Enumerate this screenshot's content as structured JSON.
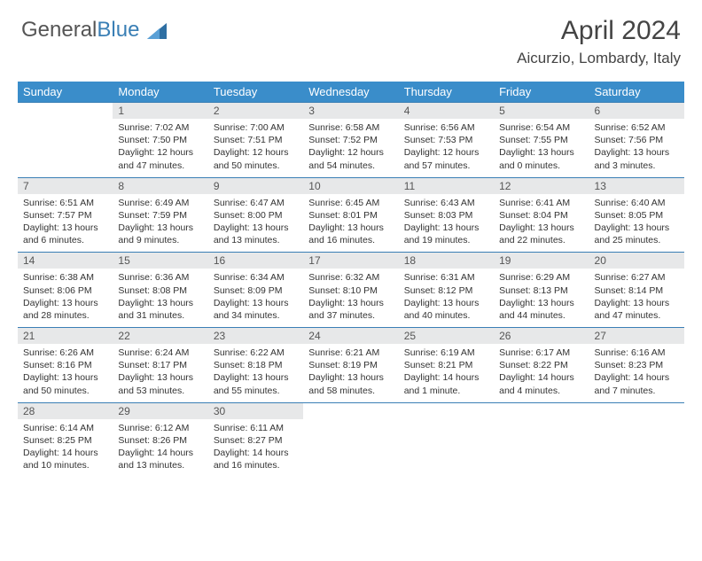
{
  "brand": {
    "part1": "General",
    "part2": "Blue"
  },
  "header": {
    "title": "April 2024",
    "location": "Aicurzio, Lombardy, Italy"
  },
  "theme": {
    "header_bg": "#3a8dca",
    "header_text": "#ffffff",
    "daynum_bg": "#e7e8e9",
    "rule_color": "#3a7fb5",
    "body_text": "#333333"
  },
  "weekdays": [
    "Sunday",
    "Monday",
    "Tuesday",
    "Wednesday",
    "Thursday",
    "Friday",
    "Saturday"
  ],
  "weeks": [
    {
      "nums": [
        "",
        "1",
        "2",
        "3",
        "4",
        "5",
        "6"
      ],
      "cells": [
        {
          "sunrise": "",
          "sunset": "",
          "daylight": ""
        },
        {
          "sunrise": "Sunrise: 7:02 AM",
          "sunset": "Sunset: 7:50 PM",
          "daylight": "Daylight: 12 hours and 47 minutes."
        },
        {
          "sunrise": "Sunrise: 7:00 AM",
          "sunset": "Sunset: 7:51 PM",
          "daylight": "Daylight: 12 hours and 50 minutes."
        },
        {
          "sunrise": "Sunrise: 6:58 AM",
          "sunset": "Sunset: 7:52 PM",
          "daylight": "Daylight: 12 hours and 54 minutes."
        },
        {
          "sunrise": "Sunrise: 6:56 AM",
          "sunset": "Sunset: 7:53 PM",
          "daylight": "Daylight: 12 hours and 57 minutes."
        },
        {
          "sunrise": "Sunrise: 6:54 AM",
          "sunset": "Sunset: 7:55 PM",
          "daylight": "Daylight: 13 hours and 0 minutes."
        },
        {
          "sunrise": "Sunrise: 6:52 AM",
          "sunset": "Sunset: 7:56 PM",
          "daylight": "Daylight: 13 hours and 3 minutes."
        }
      ]
    },
    {
      "nums": [
        "7",
        "8",
        "9",
        "10",
        "11",
        "12",
        "13"
      ],
      "cells": [
        {
          "sunrise": "Sunrise: 6:51 AM",
          "sunset": "Sunset: 7:57 PM",
          "daylight": "Daylight: 13 hours and 6 minutes."
        },
        {
          "sunrise": "Sunrise: 6:49 AM",
          "sunset": "Sunset: 7:59 PM",
          "daylight": "Daylight: 13 hours and 9 minutes."
        },
        {
          "sunrise": "Sunrise: 6:47 AM",
          "sunset": "Sunset: 8:00 PM",
          "daylight": "Daylight: 13 hours and 13 minutes."
        },
        {
          "sunrise": "Sunrise: 6:45 AM",
          "sunset": "Sunset: 8:01 PM",
          "daylight": "Daylight: 13 hours and 16 minutes."
        },
        {
          "sunrise": "Sunrise: 6:43 AM",
          "sunset": "Sunset: 8:03 PM",
          "daylight": "Daylight: 13 hours and 19 minutes."
        },
        {
          "sunrise": "Sunrise: 6:41 AM",
          "sunset": "Sunset: 8:04 PM",
          "daylight": "Daylight: 13 hours and 22 minutes."
        },
        {
          "sunrise": "Sunrise: 6:40 AM",
          "sunset": "Sunset: 8:05 PM",
          "daylight": "Daylight: 13 hours and 25 minutes."
        }
      ]
    },
    {
      "nums": [
        "14",
        "15",
        "16",
        "17",
        "18",
        "19",
        "20"
      ],
      "cells": [
        {
          "sunrise": "Sunrise: 6:38 AM",
          "sunset": "Sunset: 8:06 PM",
          "daylight": "Daylight: 13 hours and 28 minutes."
        },
        {
          "sunrise": "Sunrise: 6:36 AM",
          "sunset": "Sunset: 8:08 PM",
          "daylight": "Daylight: 13 hours and 31 minutes."
        },
        {
          "sunrise": "Sunrise: 6:34 AM",
          "sunset": "Sunset: 8:09 PM",
          "daylight": "Daylight: 13 hours and 34 minutes."
        },
        {
          "sunrise": "Sunrise: 6:32 AM",
          "sunset": "Sunset: 8:10 PM",
          "daylight": "Daylight: 13 hours and 37 minutes."
        },
        {
          "sunrise": "Sunrise: 6:31 AM",
          "sunset": "Sunset: 8:12 PM",
          "daylight": "Daylight: 13 hours and 40 minutes."
        },
        {
          "sunrise": "Sunrise: 6:29 AM",
          "sunset": "Sunset: 8:13 PM",
          "daylight": "Daylight: 13 hours and 44 minutes."
        },
        {
          "sunrise": "Sunrise: 6:27 AM",
          "sunset": "Sunset: 8:14 PM",
          "daylight": "Daylight: 13 hours and 47 minutes."
        }
      ]
    },
    {
      "nums": [
        "21",
        "22",
        "23",
        "24",
        "25",
        "26",
        "27"
      ],
      "cells": [
        {
          "sunrise": "Sunrise: 6:26 AM",
          "sunset": "Sunset: 8:16 PM",
          "daylight": "Daylight: 13 hours and 50 minutes."
        },
        {
          "sunrise": "Sunrise: 6:24 AM",
          "sunset": "Sunset: 8:17 PM",
          "daylight": "Daylight: 13 hours and 53 minutes."
        },
        {
          "sunrise": "Sunrise: 6:22 AM",
          "sunset": "Sunset: 8:18 PM",
          "daylight": "Daylight: 13 hours and 55 minutes."
        },
        {
          "sunrise": "Sunrise: 6:21 AM",
          "sunset": "Sunset: 8:19 PM",
          "daylight": "Daylight: 13 hours and 58 minutes."
        },
        {
          "sunrise": "Sunrise: 6:19 AM",
          "sunset": "Sunset: 8:21 PM",
          "daylight": "Daylight: 14 hours and 1 minute."
        },
        {
          "sunrise": "Sunrise: 6:17 AM",
          "sunset": "Sunset: 8:22 PM",
          "daylight": "Daylight: 14 hours and 4 minutes."
        },
        {
          "sunrise": "Sunrise: 6:16 AM",
          "sunset": "Sunset: 8:23 PM",
          "daylight": "Daylight: 14 hours and 7 minutes."
        }
      ]
    },
    {
      "nums": [
        "28",
        "29",
        "30",
        "",
        "",
        "",
        ""
      ],
      "cells": [
        {
          "sunrise": "Sunrise: 6:14 AM",
          "sunset": "Sunset: 8:25 PM",
          "daylight": "Daylight: 14 hours and 10 minutes."
        },
        {
          "sunrise": "Sunrise: 6:12 AM",
          "sunset": "Sunset: 8:26 PM",
          "daylight": "Daylight: 14 hours and 13 minutes."
        },
        {
          "sunrise": "Sunrise: 6:11 AM",
          "sunset": "Sunset: 8:27 PM",
          "daylight": "Daylight: 14 hours and 16 minutes."
        },
        {
          "sunrise": "",
          "sunset": "",
          "daylight": ""
        },
        {
          "sunrise": "",
          "sunset": "",
          "daylight": ""
        },
        {
          "sunrise": "",
          "sunset": "",
          "daylight": ""
        },
        {
          "sunrise": "",
          "sunset": "",
          "daylight": ""
        }
      ]
    }
  ]
}
